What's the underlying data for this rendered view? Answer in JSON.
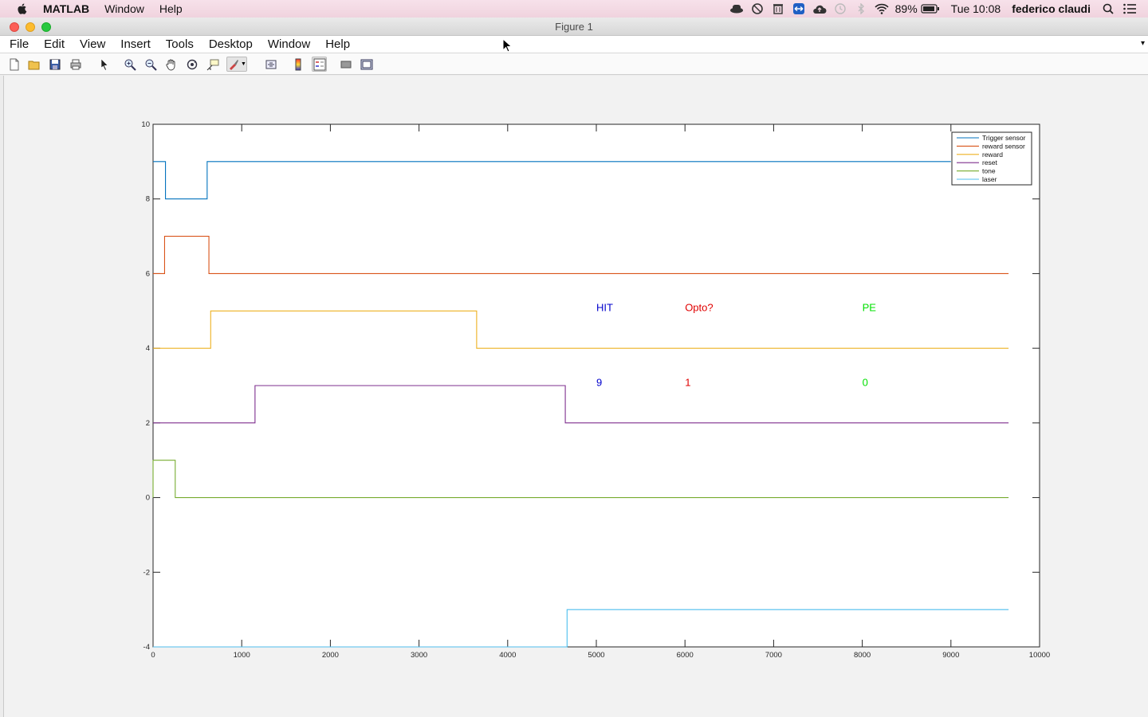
{
  "menubar": {
    "app_name": "MATLAB",
    "items": [
      "Window",
      "Help"
    ],
    "battery": "89%",
    "clock": "Tue 10:08",
    "user": "federico claudi"
  },
  "window": {
    "title": "Figure 1",
    "menu": [
      "File",
      "Edit",
      "View",
      "Insert",
      "Tools",
      "Desktop",
      "Window",
      "Help"
    ]
  },
  "toolbar": {
    "icons": [
      "new-figure-icon",
      "open-icon",
      "save-icon",
      "print-icon",
      "pointer-icon",
      "zoom-in-icon",
      "zoom-out-icon",
      "pan-icon",
      "rotate-icon",
      "data-cursor-icon",
      "brush-icon",
      "link-icon",
      "colorbar-icon",
      "legend-icon",
      "hide-tools-icon",
      "show-tools-icon"
    ]
  },
  "chart_data": {
    "type": "line",
    "xlim": [
      0,
      10000
    ],
    "ylim": [
      -4,
      10
    ],
    "xticks": [
      0,
      1000,
      2000,
      3000,
      4000,
      5000,
      6000,
      7000,
      8000,
      9000,
      10000
    ],
    "yticks": [
      -4,
      -2,
      0,
      2,
      4,
      6,
      8,
      10
    ],
    "legend_position": "top-right",
    "grid": false,
    "series": [
      {
        "name": "Trigger sensor",
        "color": "#0072BD",
        "x": [
          0,
          140,
          140,
          610,
          610,
          9000
        ],
        "y": [
          9,
          9,
          8,
          8,
          9,
          9
        ]
      },
      {
        "name": "reward sensor",
        "color": "#D95319",
        "x": [
          0,
          130,
          130,
          630,
          630,
          9650
        ],
        "y": [
          6,
          6,
          7,
          7,
          6,
          6
        ]
      },
      {
        "name": "reward",
        "color": "#EDB120",
        "x": [
          0,
          650,
          650,
          3650,
          3650,
          9650
        ],
        "y": [
          4,
          4,
          5,
          5,
          4,
          4
        ]
      },
      {
        "name": "reset",
        "color": "#7E2F8E",
        "x": [
          0,
          1150,
          1150,
          4650,
          4650,
          9650
        ],
        "y": [
          2,
          2,
          3,
          3,
          2,
          2
        ]
      },
      {
        "name": "tone",
        "color": "#77AC30",
        "x": [
          0,
          0,
          250,
          250,
          9650
        ],
        "y": [
          0,
          1,
          1,
          0,
          0
        ]
      },
      {
        "name": "laser",
        "color": "#4DBEEE",
        "x": [
          0,
          4670,
          4670,
          9650
        ],
        "y": [
          -4,
          -4,
          -3,
          -3
        ]
      }
    ],
    "annotations": [
      {
        "text": "HIT",
        "x": 5000,
        "y": 5.1,
        "color": "#0000CC"
      },
      {
        "text": "Opto?",
        "x": 6000,
        "y": 5.1,
        "color": "#E00000"
      },
      {
        "text": "PE",
        "x": 8000,
        "y": 5.1,
        "color": "#00E000"
      },
      {
        "text": "9",
        "x": 5000,
        "y": 3.1,
        "color": "#0000CC"
      },
      {
        "text": "1",
        "x": 6000,
        "y": 3.1,
        "color": "#E00000"
      },
      {
        "text": "0",
        "x": 8000,
        "y": 3.1,
        "color": "#00E000"
      }
    ]
  }
}
